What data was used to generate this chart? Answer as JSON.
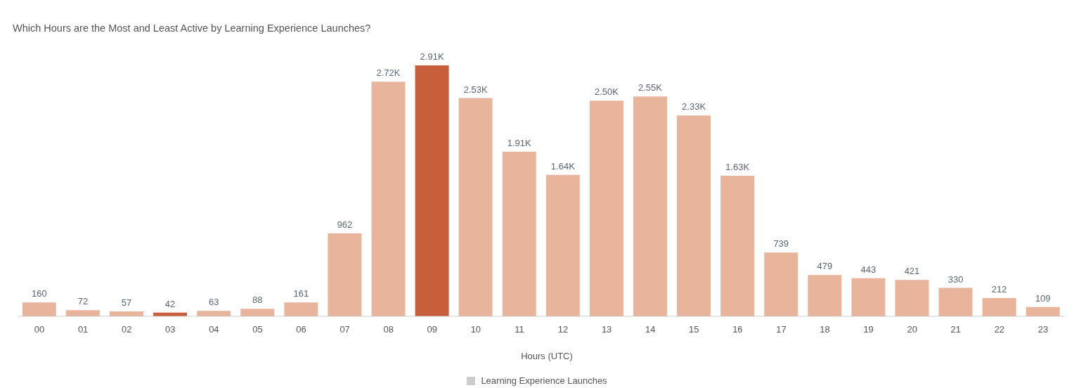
{
  "chart_data": {
    "type": "bar",
    "title": "Which Hours are the Most and Least Active by Learning Experience Launches?",
    "xlabel": "Hours (UTC)",
    "categories": [
      "00",
      "01",
      "02",
      "03",
      "04",
      "05",
      "06",
      "07",
      "08",
      "09",
      "10",
      "11",
      "12",
      "13",
      "14",
      "15",
      "16",
      "17",
      "18",
      "19",
      "20",
      "21",
      "22",
      "23"
    ],
    "series": [
      {
        "name": "Learning Experience Launches",
        "values": [
          160,
          72,
          57,
          42,
          63,
          88,
          161,
          962,
          2720,
          2910,
          2530,
          1910,
          1640,
          2500,
          2550,
          2330,
          1630,
          739,
          479,
          443,
          421,
          330,
          212,
          109
        ],
        "colors": [
          "#e8b49c",
          "#e8b49c",
          "#e8b49c",
          "#c75f3c",
          "#e8b49c",
          "#e8b49c",
          "#e8b49c",
          "#e8b49c",
          "#e8b49c",
          "#c75f3c",
          "#e8b49c",
          "#e8b49c",
          "#e8b49c",
          "#e8b49c",
          "#e8b49c",
          "#e8b49c",
          "#e8b49c",
          "#e8b49c",
          "#e8b49c",
          "#e8b49c",
          "#e8b49c",
          "#e8b49c",
          "#e8b49c",
          "#e8b49c"
        ],
        "value_labels": [
          "160",
          "72",
          "57",
          "42",
          "63",
          "88",
          "161",
          "962",
          "2.72K",
          "2.91K",
          "2.53K",
          "1.91K",
          "1.64K",
          "2.50K",
          "2.55K",
          "2.33K",
          "1.63K",
          "739",
          "479",
          "443",
          "421",
          "330",
          "212",
          "109"
        ]
      }
    ],
    "legend": "bottom",
    "tick_labels": "x"
  }
}
